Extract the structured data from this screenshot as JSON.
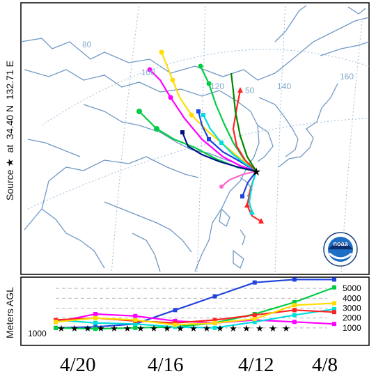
{
  "source_label": {
    "prefix": "Source",
    "star": "★",
    "at": "at",
    "lat": "34.40 N",
    "lon": "132.71 E"
  },
  "map_labels": [
    "80",
    "100",
    "120",
    "50",
    "140",
    "160"
  ],
  "height_panel": {
    "ylabel": "Meters AGL",
    "left_tick": "1000",
    "right_ticks": [
      "5000",
      "4000",
      "3000",
      "2000",
      "1000"
    ]
  },
  "dates": [
    "4/20",
    "4/16",
    "4/12",
    "4/8"
  ],
  "logo": {
    "text": "noaa"
  },
  "colors": {
    "frame": "#000000",
    "map_lines": "#7fa6cc",
    "trajectories": [
      "#2244dd",
      "#00cc44",
      "#ff00ff",
      "#00dddd",
      "#ff2222",
      "#ffdd00",
      "#001188",
      "#ff66cc",
      "#008800",
      "#ffff33"
    ]
  },
  "chart_data": {
    "type": "line",
    "title": "",
    "xlabel": "",
    "ylabel": "Meters AGL",
    "x_ticks": [
      "4/20",
      "4/16",
      "4/12",
      "4/8"
    ],
    "ylim": [
      0,
      6000
    ],
    "y_ticks": [
      1000,
      2000,
      3000,
      4000,
      5000
    ],
    "series": [
      {
        "color": "#2244dd",
        "values": [
          1000,
          1100,
          1400,
          2800,
          4200,
          5600,
          5900,
          5900
        ]
      },
      {
        "color": "#00cc44",
        "values": [
          1000,
          900,
          1000,
          1100,
          1500,
          2400,
          3600,
          5100
        ]
      },
      {
        "color": "#ff00ff",
        "values": [
          1600,
          2400,
          2200,
          1700,
          1500,
          1800,
          1600,
          1400
        ]
      },
      {
        "color": "#00dddd",
        "values": [
          1800,
          1500,
          1400,
          1100,
          1000,
          1600,
          2300,
          2900
        ]
      },
      {
        "color": "#ff2222",
        "values": [
          1800,
          2000,
          1700,
          1500,
          1800,
          2300,
          2800,
          2600
        ]
      },
      {
        "color": "#ffdd00",
        "values": [
          1600,
          2000,
          1800,
          1300,
          1500,
          1900,
          3300,
          3500
        ]
      }
    ]
  }
}
